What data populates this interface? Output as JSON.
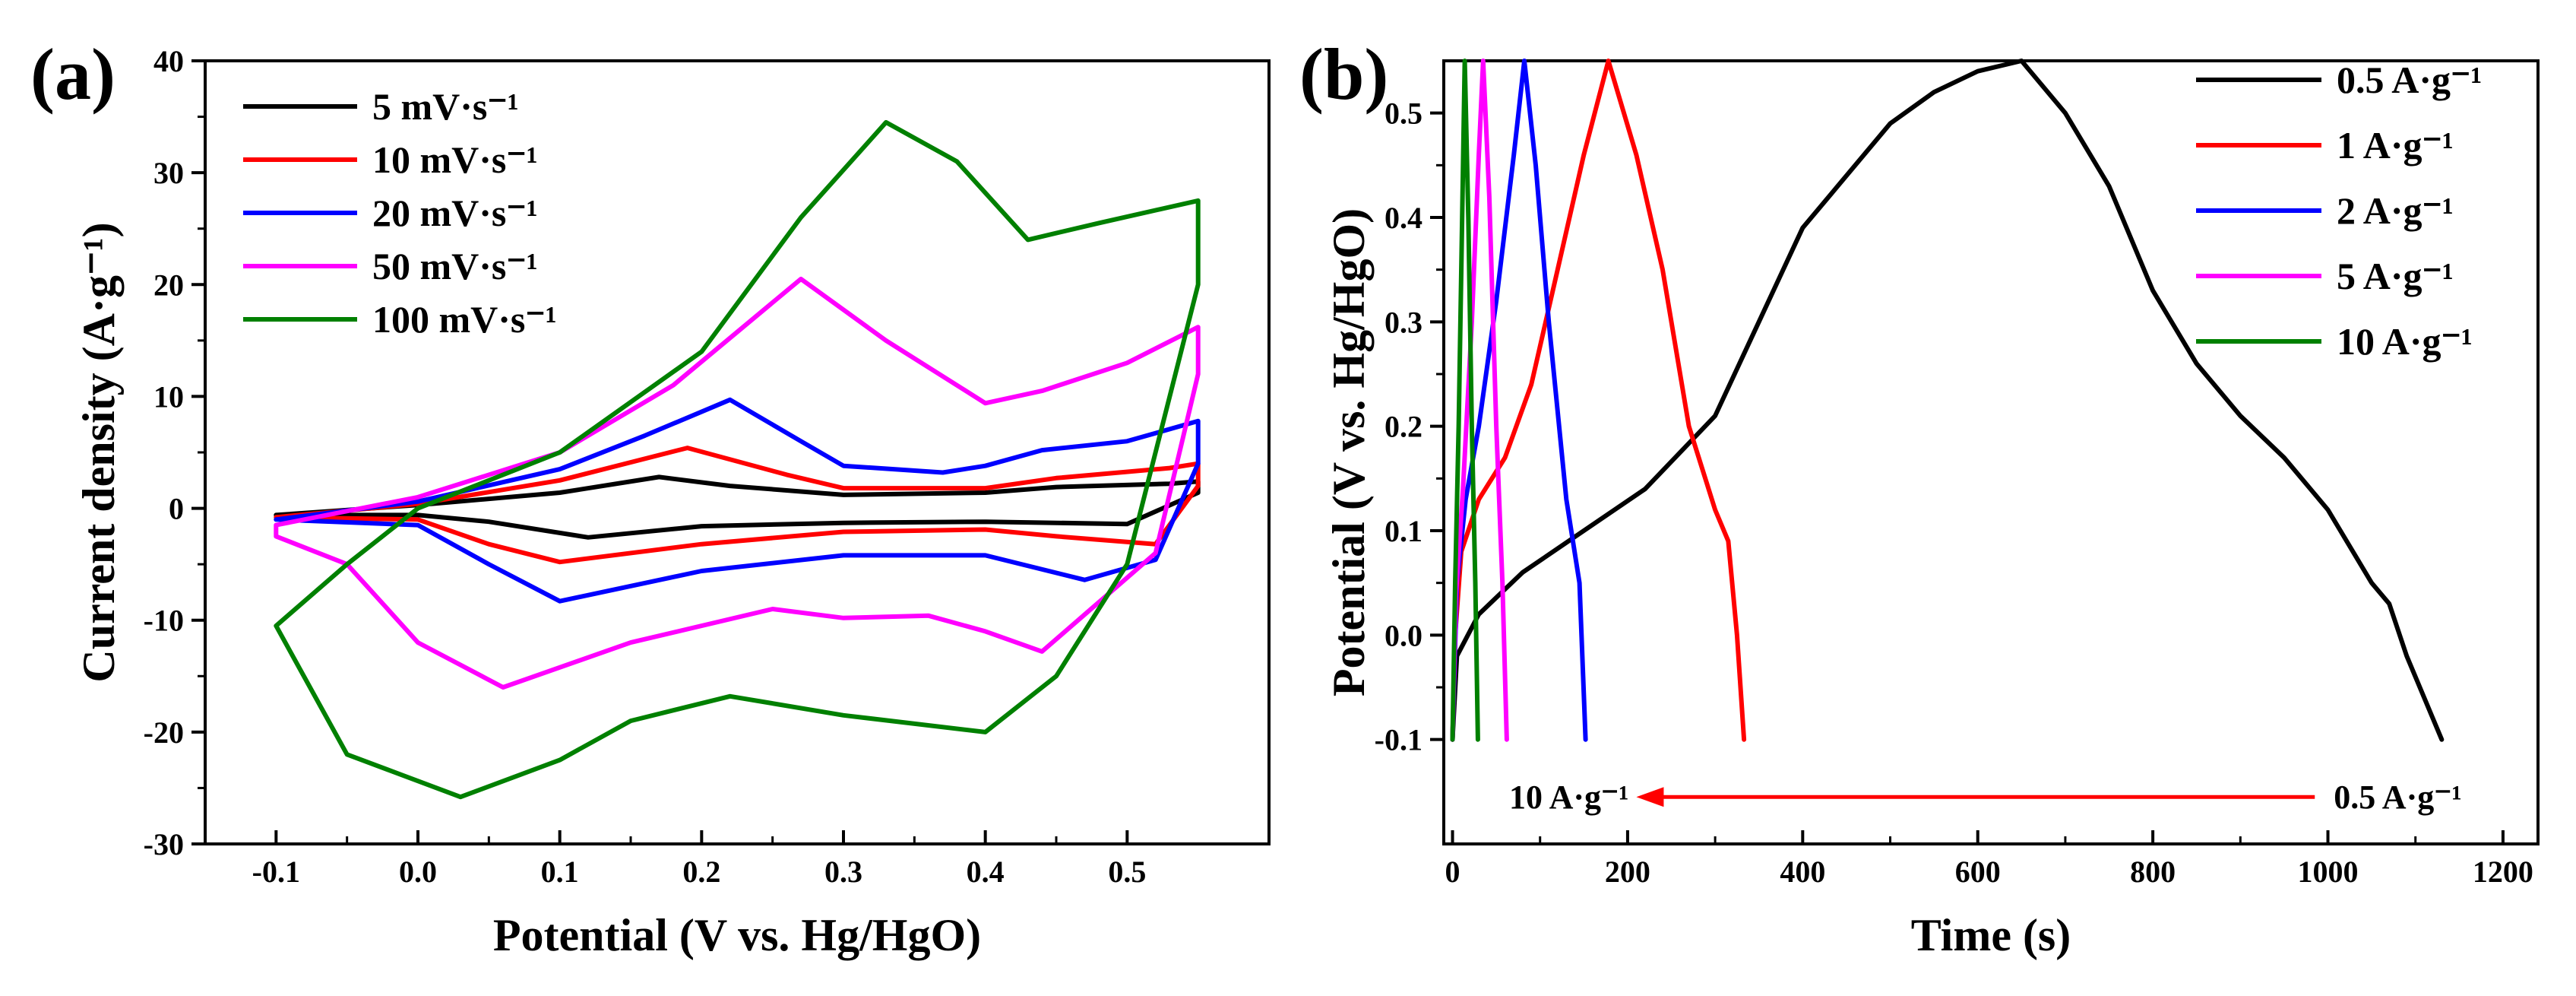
{
  "chart_data": [
    {
      "panel": "(a)",
      "type": "line",
      "xlabel": "Potential (V vs. Hg/HgO)",
      "ylabel": "Current density (A·g⁻¹)",
      "xlim": [
        -0.15,
        0.6
      ],
      "ylim": [
        -30,
        40
      ],
      "xticks": [
        -0.1,
        0.0,
        0.1,
        0.2,
        0.3,
        0.4,
        0.5
      ],
      "xtick_labels": [
        "-0.1",
        "0.0",
        "0.1",
        "0.2",
        "0.3",
        "0.4",
        "0.5"
      ],
      "yticks": [
        -30,
        -20,
        -10,
        0,
        10,
        20,
        30,
        40
      ],
      "ytick_labels": [
        "-30",
        "-20",
        "-10",
        "0",
        "10",
        "20",
        "30",
        "40"
      ],
      "legend_position": "top-left",
      "series": [
        {
          "name": "5 mV·s⁻¹",
          "color": "#000000",
          "points": [
            [
              -0.1,
              -0.6
            ],
            [
              0.0,
              0.3
            ],
            [
              0.1,
              1.4
            ],
            [
              0.17,
              2.8
            ],
            [
              0.22,
              2.0
            ],
            [
              0.3,
              1.2
            ],
            [
              0.4,
              1.4
            ],
            [
              0.45,
              1.9
            ],
            [
              0.53,
              2.2
            ],
            [
              0.55,
              2.4
            ],
            [
              0.55,
              1.4
            ],
            [
              0.5,
              -1.4
            ],
            [
              0.4,
              -1.2
            ],
            [
              0.3,
              -1.3
            ],
            [
              0.2,
              -1.6
            ],
            [
              0.12,
              -2.6
            ],
            [
              0.05,
              -1.2
            ],
            [
              0.0,
              -0.6
            ],
            [
              -0.1,
              -0.6
            ]
          ]
        },
        {
          "name": "10 mV·s⁻¹",
          "color": "#ff0000",
          "points": [
            [
              -0.1,
              -0.8
            ],
            [
              0.0,
              0.4
            ],
            [
              0.1,
              2.5
            ],
            [
              0.19,
              5.4
            ],
            [
              0.26,
              3.0
            ],
            [
              0.3,
              1.8
            ],
            [
              0.4,
              1.8
            ],
            [
              0.45,
              2.7
            ],
            [
              0.53,
              3.6
            ],
            [
              0.55,
              4.0
            ],
            [
              0.55,
              2.0
            ],
            [
              0.52,
              -3.2
            ],
            [
              0.45,
              -2.5
            ],
            [
              0.4,
              -1.9
            ],
            [
              0.3,
              -2.1
            ],
            [
              0.2,
              -3.2
            ],
            [
              0.1,
              -4.8
            ],
            [
              0.05,
              -3.2
            ],
            [
              0.0,
              -1.0
            ],
            [
              -0.1,
              -0.8
            ]
          ]
        },
        {
          "name": "20 mV·s⁻¹",
          "color": "#0000ff",
          "points": [
            [
              -0.1,
              -1.0
            ],
            [
              0.0,
              0.6
            ],
            [
              0.1,
              3.5
            ],
            [
              0.16,
              6.5
            ],
            [
              0.22,
              9.7
            ],
            [
              0.27,
              6.0
            ],
            [
              0.3,
              3.8
            ],
            [
              0.37,
              3.2
            ],
            [
              0.4,
              3.8
            ],
            [
              0.44,
              5.2
            ],
            [
              0.5,
              6.0
            ],
            [
              0.55,
              7.8
            ],
            [
              0.55,
              4.0
            ],
            [
              0.52,
              -4.6
            ],
            [
              0.47,
              -6.4
            ],
            [
              0.4,
              -4.2
            ],
            [
              0.3,
              -4.2
            ],
            [
              0.2,
              -5.6
            ],
            [
              0.1,
              -8.3
            ],
            [
              0.05,
              -5.0
            ],
            [
              0.0,
              -1.5
            ],
            [
              -0.1,
              -1.0
            ]
          ]
        },
        {
          "name": "50 mV·s⁻¹",
          "color": "#ff00ff",
          "points": [
            [
              -0.1,
              -1.5
            ],
            [
              0.0,
              1.0
            ],
            [
              0.1,
              5.0
            ],
            [
              0.18,
              11.0
            ],
            [
              0.27,
              20.5
            ],
            [
              0.33,
              15.0
            ],
            [
              0.4,
              9.4
            ],
            [
              0.44,
              10.5
            ],
            [
              0.5,
              13.0
            ],
            [
              0.55,
              16.2
            ],
            [
              0.55,
              12.0
            ],
            [
              0.52,
              -4.0
            ],
            [
              0.44,
              -12.8
            ],
            [
              0.4,
              -11.0
            ],
            [
              0.36,
              -9.6
            ],
            [
              0.3,
              -9.8
            ],
            [
              0.25,
              -9.0
            ],
            [
              0.15,
              -12.0
            ],
            [
              0.06,
              -16.0
            ],
            [
              0.0,
              -12.0
            ],
            [
              -0.05,
              -5.0
            ],
            [
              -0.1,
              -2.5
            ],
            [
              -0.1,
              -1.5
            ]
          ]
        },
        {
          "name": "100 mV·s⁻¹",
          "color": "#008000",
          "points": [
            [
              -0.1,
              -10.5
            ],
            [
              -0.05,
              -5.0
            ],
            [
              0.0,
              0.0
            ],
            [
              0.1,
              5.0
            ],
            [
              0.2,
              14.0
            ],
            [
              0.27,
              26.0
            ],
            [
              0.33,
              34.5
            ],
            [
              0.38,
              31.0
            ],
            [
              0.43,
              24.0
            ],
            [
              0.48,
              25.5
            ],
            [
              0.55,
              27.5
            ],
            [
              0.55,
              20.0
            ],
            [
              0.5,
              -5.0
            ],
            [
              0.45,
              -15.0
            ],
            [
              0.4,
              -20.0
            ],
            [
              0.3,
              -18.5
            ],
            [
              0.22,
              -16.8
            ],
            [
              0.15,
              -19.0
            ],
            [
              0.1,
              -22.5
            ],
            [
              0.03,
              -25.8
            ],
            [
              -0.05,
              -22.0
            ],
            [
              -0.1,
              -10.5
            ]
          ]
        }
      ]
    },
    {
      "panel": "(b)",
      "type": "line",
      "xlabel": "Time (s)",
      "ylabel": "Potential (V vs. Hg/HgO)",
      "xlim": [
        -10,
        1240
      ],
      "ylim": [
        -0.2,
        0.55
      ],
      "xticks": [
        0,
        200,
        400,
        600,
        800,
        1000,
        1200
      ],
      "xtick_labels": [
        "0",
        "200",
        "400",
        "600",
        "800",
        "1000",
        "1200"
      ],
      "yticks": [
        -0.1,
        0.0,
        0.1,
        0.2,
        0.3,
        0.4,
        0.5
      ],
      "ytick_labels": [
        "-0.1",
        "0.0",
        "0.1",
        "0.2",
        "0.3",
        "0.4",
        "0.5"
      ],
      "legend_position": "top-right",
      "annotation": {
        "start_label": "0.5 A·g⁻¹",
        "end_label": "10 A·g⁻¹",
        "from_x": 985,
        "to_x": 210,
        "y": -0.155,
        "arrow_color": "#ff0000"
      },
      "series": [
        {
          "name": "0.5 A·g⁻¹",
          "color": "#000000",
          "points": [
            [
              0,
              -0.1
            ],
            [
              5,
              -0.02
            ],
            [
              30,
              0.02
            ],
            [
              80,
              0.06
            ],
            [
              150,
              0.1
            ],
            [
              220,
              0.14
            ],
            [
              300,
              0.21
            ],
            [
              350,
              0.3
            ],
            [
              400,
              0.39
            ],
            [
              450,
              0.44
            ],
            [
              500,
              0.49
            ],
            [
              550,
              0.52
            ],
            [
              600,
              0.54
            ],
            [
              650,
              0.55
            ],
            [
              700,
              0.5
            ],
            [
              750,
              0.43
            ],
            [
              800,
              0.33
            ],
            [
              850,
              0.26
            ],
            [
              900,
              0.21
            ],
            [
              950,
              0.17
            ],
            [
              1000,
              0.12
            ],
            [
              1050,
              0.05
            ],
            [
              1070,
              0.03
            ],
            [
              1090,
              -0.02
            ],
            [
              1130,
              -0.1
            ]
          ]
        },
        {
          "name": "1 A·g⁻¹",
          "color": "#ff0000",
          "points": [
            [
              0,
              -0.1
            ],
            [
              3,
              0.0
            ],
            [
              10,
              0.08
            ],
            [
              30,
              0.13
            ],
            [
              60,
              0.17
            ],
            [
              90,
              0.24
            ],
            [
              120,
              0.35
            ],
            [
              150,
              0.46
            ],
            [
              178,
              0.55
            ],
            [
              210,
              0.46
            ],
            [
              240,
              0.35
            ],
            [
              270,
              0.2
            ],
            [
              300,
              0.12
            ],
            [
              315,
              0.09
            ],
            [
              325,
              0.0
            ],
            [
              333,
              -0.1
            ]
          ]
        },
        {
          "name": "2 A·g⁻¹",
          "color": "#0000ff",
          "points": [
            [
              0,
              -0.1
            ],
            [
              5,
              0.05
            ],
            [
              15,
              0.13
            ],
            [
              30,
              0.2
            ],
            [
              50,
              0.32
            ],
            [
              70,
              0.46
            ],
            [
              82,
              0.55
            ],
            [
              95,
              0.45
            ],
            [
              110,
              0.3
            ],
            [
              130,
              0.13
            ],
            [
              145,
              0.05
            ],
            [
              152,
              -0.1
            ]
          ]
        },
        {
          "name": "5 A·g⁻¹",
          "color": "#ff00ff",
          "points": [
            [
              0,
              -0.1
            ],
            [
              4,
              0.04
            ],
            [
              12,
              0.14
            ],
            [
              22,
              0.3
            ],
            [
              30,
              0.46
            ],
            [
              35,
              0.55
            ],
            [
              42,
              0.42
            ],
            [
              50,
              0.2
            ],
            [
              57,
              0.05
            ],
            [
              62,
              -0.1
            ]
          ]
        },
        {
          "name": "10 A·g⁻¹",
          "color": "#008000",
          "points": [
            [
              0,
              -0.1
            ],
            [
              3,
              0.05
            ],
            [
              7,
              0.2
            ],
            [
              11,
              0.4
            ],
            [
              14,
              0.55
            ],
            [
              18,
              0.4
            ],
            [
              22,
              0.2
            ],
            [
              26,
              0.05
            ],
            [
              29,
              -0.1
            ]
          ]
        }
      ]
    }
  ]
}
